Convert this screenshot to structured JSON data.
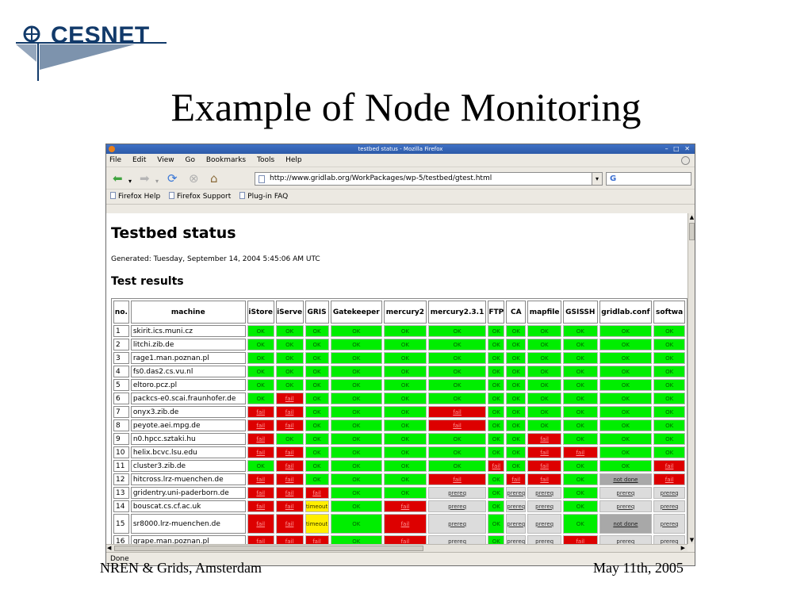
{
  "slide": {
    "logo_text": "CESNET",
    "title": "Example of Node Monitoring",
    "footer_left": "NREN & Grids, Amsterdam",
    "footer_right": "May 11th, 2005"
  },
  "browser": {
    "window_title": "testbed status - Mozilla Firefox",
    "menu": [
      "File",
      "Edit",
      "View",
      "Go",
      "Bookmarks",
      "Tools",
      "Help"
    ],
    "url": "http://www.gridlab.org/WorkPackages/wp-5/testbed/gtest.html",
    "search_engine_glyph": "G",
    "bookmarks": [
      "Firefox Help",
      "Firefox Support",
      "Plug-in FAQ"
    ],
    "status": "Done"
  },
  "page": {
    "heading": "Testbed status",
    "generated": "Generated: Tuesday, September 14, 2004 5:45:06 AM UTC",
    "subheading": "Test results",
    "columns": [
      "no.",
      "machine",
      "iStore",
      "iServe",
      "GRIS",
      "Gatekeeper",
      "mercury2",
      "mercury2.3.1",
      "FTP",
      "CA",
      "mapfile",
      "GSISSH",
      "gridlab.conf",
      "softwa"
    ],
    "rows": [
      {
        "no": "1",
        "machine": "skirit.ics.muni.cz",
        "cells": [
          "ok",
          "ok",
          "ok",
          "ok",
          "ok",
          "ok",
          "ok",
          "ok",
          "ok",
          "ok",
          "ok",
          "ok"
        ]
      },
      {
        "no": "2",
        "machine": "litchi.zib.de",
        "cells": [
          "ok",
          "ok",
          "ok",
          "ok",
          "ok",
          "ok",
          "ok",
          "ok",
          "ok",
          "ok",
          "ok",
          "ok"
        ]
      },
      {
        "no": "3",
        "machine": "rage1.man.poznan.pl",
        "cells": [
          "ok",
          "ok",
          "ok",
          "ok",
          "ok",
          "ok",
          "ok",
          "ok",
          "ok",
          "ok",
          "ok",
          "ok"
        ]
      },
      {
        "no": "4",
        "machine": "fs0.das2.cs.vu.nl",
        "cells": [
          "ok",
          "ok",
          "ok",
          "ok",
          "ok",
          "ok",
          "ok",
          "ok",
          "ok",
          "ok",
          "ok",
          "ok"
        ]
      },
      {
        "no": "5",
        "machine": "eltoro.pcz.pl",
        "cells": [
          "ok",
          "ok",
          "ok",
          "ok",
          "ok",
          "ok",
          "ok",
          "ok",
          "ok",
          "ok",
          "ok",
          "ok"
        ]
      },
      {
        "no": "6",
        "machine": "packcs-e0.scai.fraunhofer.de",
        "cells": [
          "ok",
          "fail",
          "ok",
          "ok",
          "ok",
          "ok",
          "ok",
          "ok",
          "ok",
          "ok",
          "ok",
          "ok"
        ]
      },
      {
        "no": "7",
        "machine": "onyx3.zib.de",
        "cells": [
          "fail",
          "fail",
          "ok",
          "ok",
          "ok",
          "fail",
          "ok",
          "ok",
          "ok",
          "ok",
          "ok",
          "ok"
        ]
      },
      {
        "no": "8",
        "machine": "peyote.aei.mpg.de",
        "cells": [
          "fail",
          "fail",
          "ok",
          "ok",
          "ok",
          "fail",
          "ok",
          "ok",
          "ok",
          "ok",
          "ok",
          "ok"
        ]
      },
      {
        "no": "9",
        "machine": "n0.hpcc.sztaki.hu",
        "cells": [
          "fail",
          "ok",
          "ok",
          "ok",
          "ok",
          "ok",
          "ok",
          "ok",
          "fail",
          "ok",
          "ok",
          "ok"
        ]
      },
      {
        "no": "10",
        "machine": "helix.bcvc.lsu.edu",
        "cells": [
          "fail",
          "fail",
          "ok",
          "ok",
          "ok",
          "ok",
          "ok",
          "ok",
          "fail",
          "fail",
          "ok",
          "ok"
        ]
      },
      {
        "no": "11",
        "machine": "cluster3.zib.de",
        "cells": [
          "ok",
          "fail",
          "ok",
          "ok",
          "ok",
          "ok",
          "fail",
          "ok",
          "fail",
          "ok",
          "ok",
          "fail"
        ]
      },
      {
        "no": "12",
        "machine": "hitcross.lrz-muenchen.de",
        "cells": [
          "fail",
          "fail",
          "ok",
          "ok",
          "ok",
          "fail",
          "ok",
          "fail",
          "fail",
          "ok",
          "notdone",
          "fail"
        ]
      },
      {
        "no": "13",
        "machine": "gridentry.uni-paderborn.de",
        "cells": [
          "fail",
          "fail",
          "fail",
          "ok",
          "ok",
          "prereq",
          "ok",
          "prereq",
          "prereq",
          "ok",
          "prereq",
          "prereq"
        ]
      },
      {
        "no": "14",
        "machine": "bouscat.cs.cf.ac.uk",
        "cells": [
          "fail",
          "fail",
          "timeout",
          "ok",
          "fail",
          "prereq",
          "ok",
          "prereq",
          "prereq",
          "ok",
          "prereq",
          "prereq"
        ]
      },
      {
        "no": "15",
        "machine": "sr8000.lrz-muenchen.de",
        "cells": [
          "fail",
          "fail",
          "timeout",
          "ok",
          "fail",
          "prereq",
          "ok",
          "prereq",
          "prereq",
          "ok",
          "notdone",
          "prereq"
        ],
        "tall": true
      },
      {
        "no": "16",
        "machine": "grape.man.poznan.pl",
        "cells": [
          "fail",
          "fail",
          "fail",
          "ok",
          "fail",
          "prereq",
          "ok",
          "prereq",
          "prereq",
          "fail",
          "prereq",
          "prereq"
        ]
      }
    ],
    "cell_labels": {
      "ok": "OK",
      "fail": "fail",
      "timeout": "timeout",
      "prereq": "prereq",
      "notdone": "not done"
    }
  },
  "colors": {
    "ok": "#00ee00",
    "fail": "#dd0000",
    "timeout": "#ffee00",
    "prereq": "#dcdcdc",
    "notdone": "#a8a8a8"
  }
}
